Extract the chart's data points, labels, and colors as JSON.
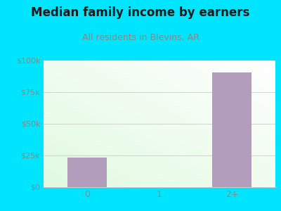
{
  "title": "Median family income by earners",
  "subtitle": "All residents in Blevins, AR",
  "categories": [
    "0",
    "1",
    "2+"
  ],
  "values": [
    23000,
    0,
    90000
  ],
  "bar_color": "#b39dbd",
  "ylim": [
    0,
    100000
  ],
  "yticks": [
    0,
    25000,
    50000,
    75000,
    100000
  ],
  "ytick_labels": [
    "$0",
    "$25k",
    "$50k",
    "$75k",
    "$100k"
  ],
  "bg_outer": "#00e5ff",
  "bg_inner_gradient_top": "#f5fff5",
  "bg_inner_gradient_bottom": "#e0f5e0",
  "title_color": "#1a1a1a",
  "subtitle_color": "#888888",
  "tick_color": "#888888",
  "grid_color": "#cccccc",
  "title_fontsize": 12,
  "subtitle_fontsize": 9
}
